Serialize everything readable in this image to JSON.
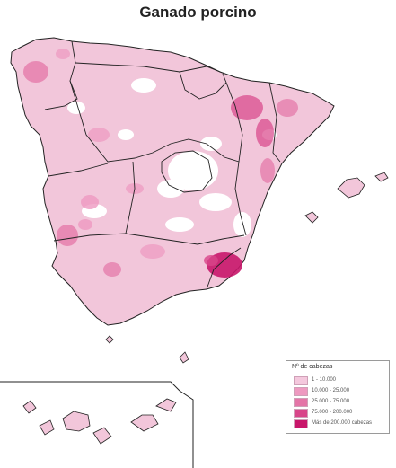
{
  "title": "Ganado porcino",
  "legend": {
    "title": "Nº de cabezas",
    "classes": [
      {
        "label": "1 - 10.000",
        "color": "#f4c8dd"
      },
      {
        "label": "10.000 - 25.000",
        "color": "#ee99c0"
      },
      {
        "label": "25.000 - 75.000",
        "color": "#e475a7"
      },
      {
        "label": "75.000 - 200.000",
        "color": "#d84589"
      },
      {
        "label": "Más de 200.000 cabezas",
        "color": "#c8166a"
      }
    ]
  },
  "colors": {
    "base": "#f2c6da",
    "border": "#222222",
    "land_gap": "#ffffff"
  }
}
